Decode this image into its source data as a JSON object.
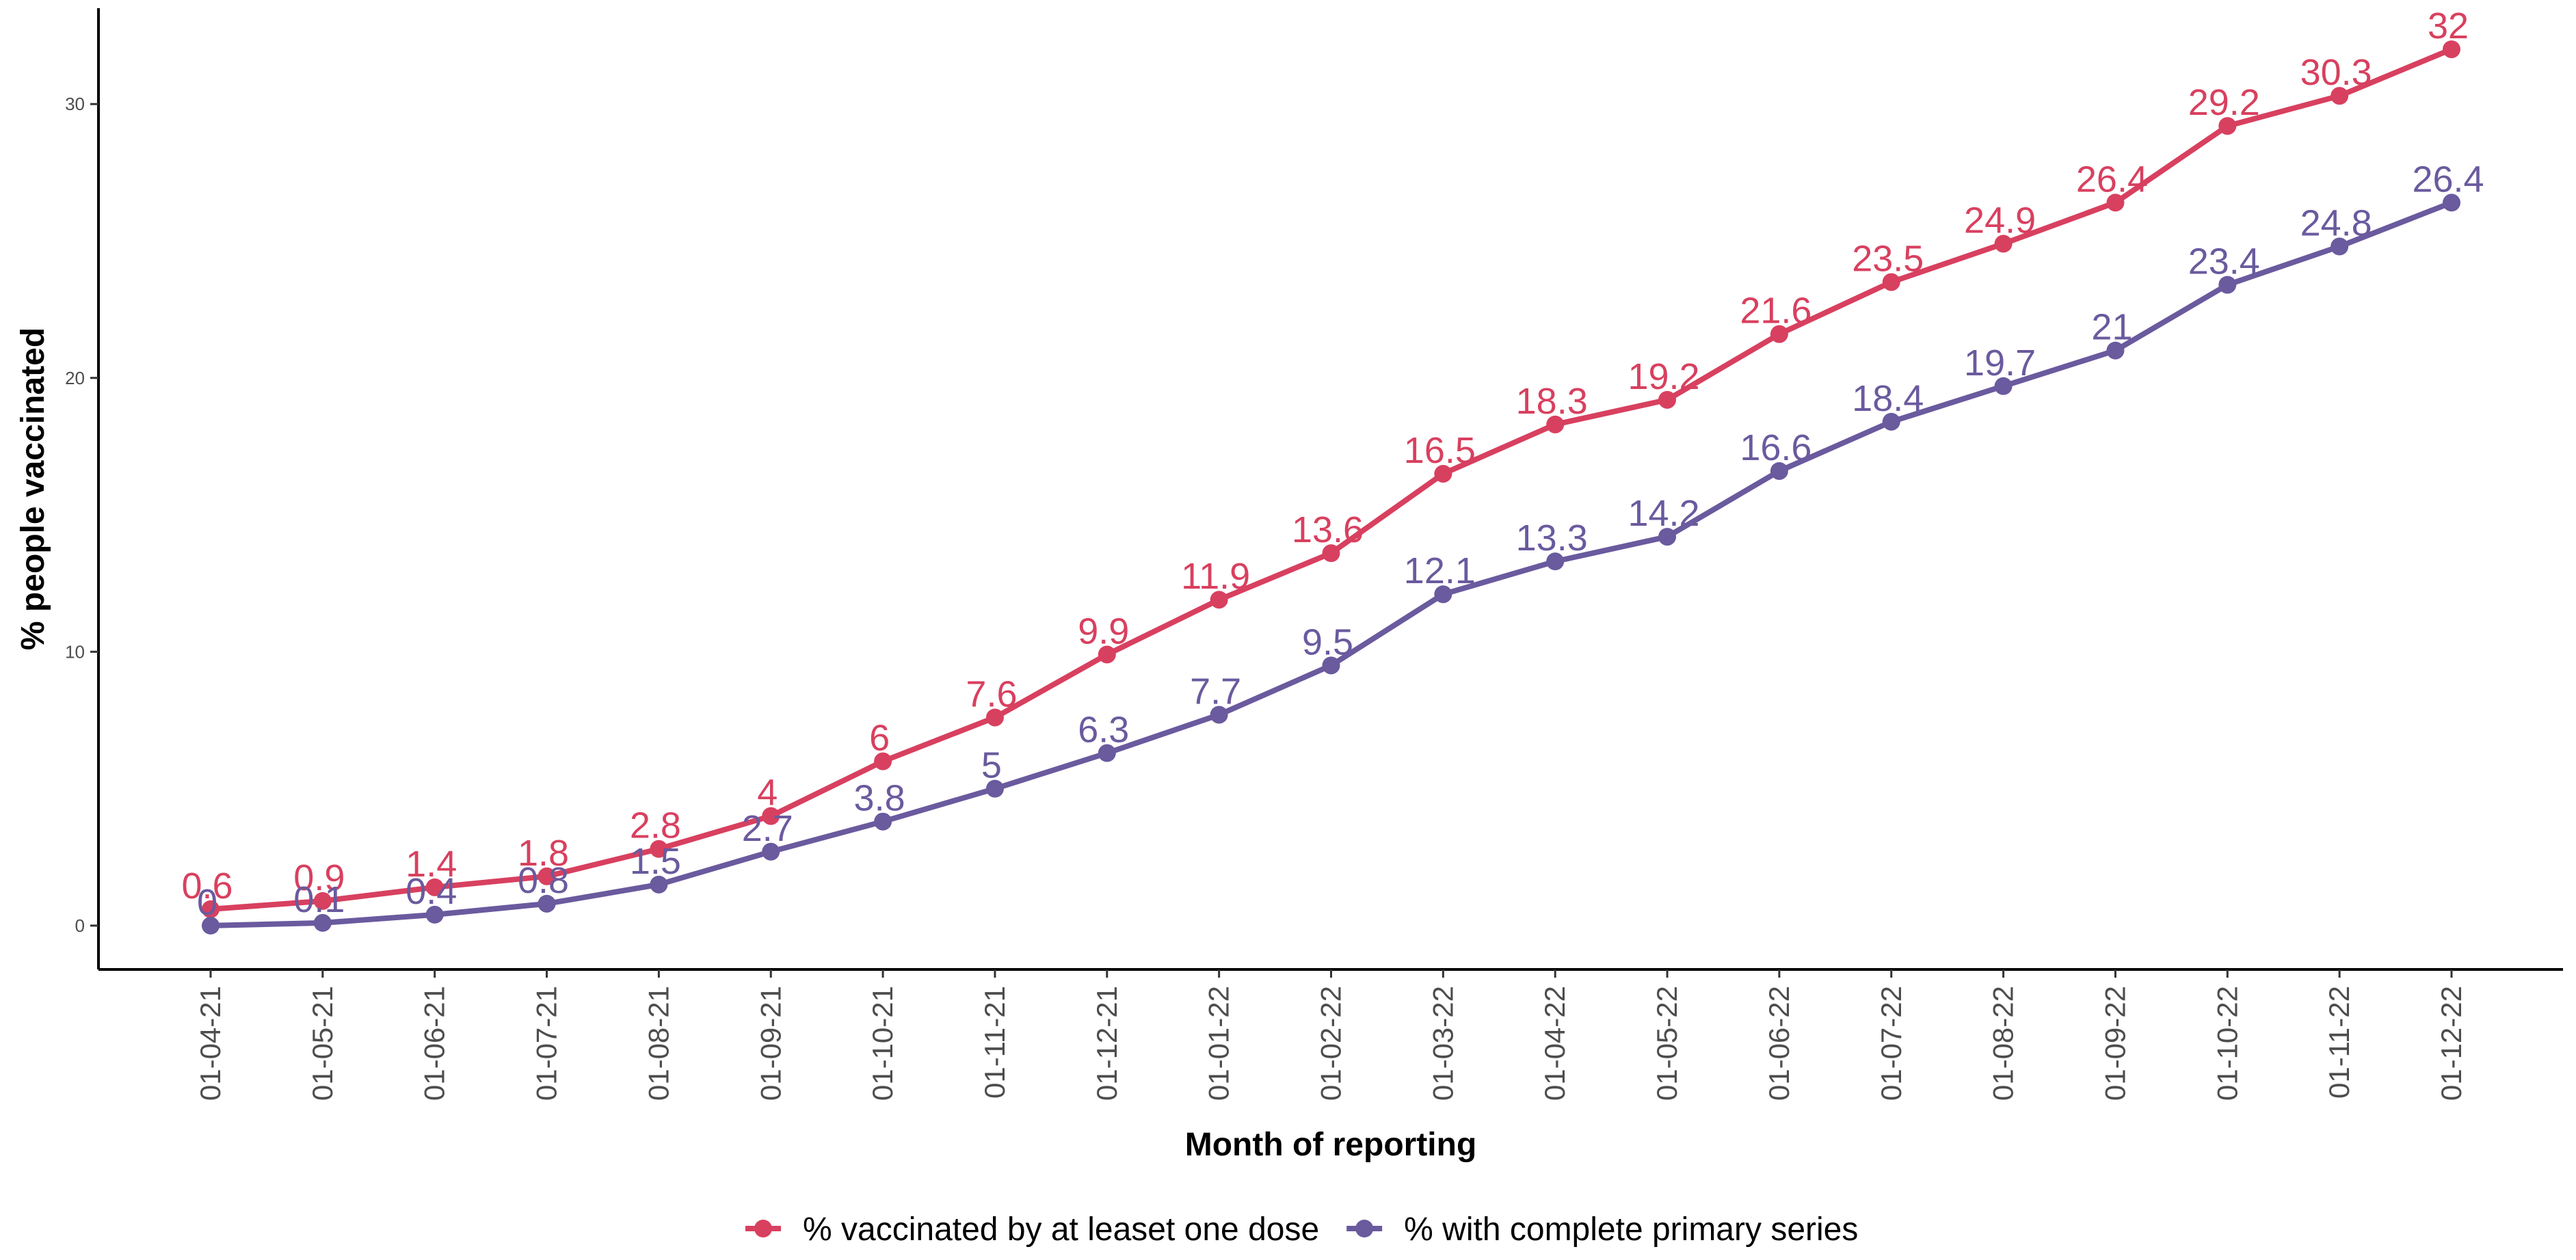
{
  "chart_data": {
    "type": "line",
    "x_label": "Month of reporting",
    "y_label": "% people vaccinated",
    "categories": [
      "01-04-21",
      "01-05-21",
      "01-06-21",
      "01-07-21",
      "01-08-21",
      "01-09-21",
      "01-10-21",
      "01-11-21",
      "01-12-21",
      "01-01-22",
      "01-02-22",
      "01-03-22",
      "01-04-22",
      "01-05-22",
      "01-06-22",
      "01-07-22",
      "01-08-22",
      "01-09-22",
      "01-10-22",
      "01-11-22",
      "01-12-22"
    ],
    "series": [
      {
        "name": "% vaccinated by at leaset one dose",
        "color": "#d8405f",
        "values": [
          0.6,
          0.9,
          1.4,
          1.8,
          2.8,
          4,
          6,
          7.6,
          9.9,
          11.9,
          13.6,
          16.5,
          18.3,
          19.2,
          21.6,
          23.5,
          24.9,
          26.4,
          29.2,
          30.3,
          32
        ]
      },
      {
        "name": "% with complete primary series",
        "color": "#6a5a9e",
        "values": [
          0,
          0.1,
          0.4,
          0.8,
          1.5,
          2.7,
          3.8,
          5,
          6.3,
          7.7,
          9.5,
          12.1,
          13.3,
          14.2,
          16.6,
          18.4,
          19.7,
          21,
          23.4,
          24.8,
          26.4
        ]
      }
    ],
    "ylim": [
      -1.6,
      33.5
    ],
    "yticks": [
      0,
      10,
      20,
      30
    ],
    "grid": false,
    "legend": "bottom",
    "data_labels": true
  }
}
